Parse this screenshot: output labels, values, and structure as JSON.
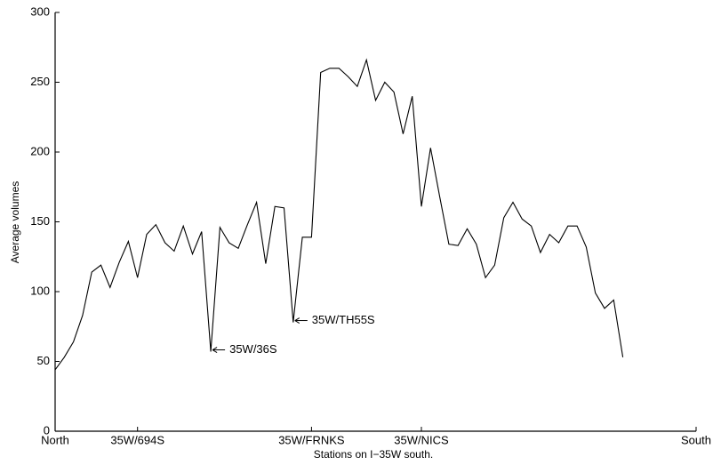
{
  "chart_data": {
    "type": "line",
    "xlabel": "Stations on I−35W south.",
    "ylabel": "Average volumes",
    "x": [
      0,
      1,
      2,
      3,
      4,
      5,
      6,
      7,
      8,
      9,
      10,
      11,
      12,
      13,
      14,
      15,
      16,
      17,
      18,
      19,
      20,
      21,
      22,
      23,
      24,
      25,
      26,
      27,
      28,
      29,
      30,
      31,
      32,
      33,
      34,
      35,
      36,
      37,
      38,
      39,
      40,
      41,
      42,
      43,
      44,
      45,
      46,
      47,
      48,
      49,
      50,
      51,
      52,
      53,
      54,
      55,
      56,
      57,
      58,
      59,
      60,
      61,
      62
    ],
    "series": [
      {
        "color": "#000000",
        "values": [
          44,
          53,
          64,
          83,
          114,
          119,
          103,
          121,
          136,
          110,
          141,
          148,
          135,
          129,
          147,
          127,
          143,
          57,
          146,
          135,
          131,
          148,
          164,
          120,
          161,
          160,
          78,
          139,
          139,
          257,
          260,
          260,
          254,
          247,
          266,
          237,
          250,
          243,
          213,
          240,
          161,
          203,
          168,
          134,
          133,
          145,
          134,
          110,
          119,
          153,
          164,
          152,
          147,
          128,
          141,
          135,
          147,
          147,
          132,
          99,
          88,
          94,
          53
        ]
      }
    ],
    "xlim": [
      0,
      70
    ],
    "xticks": [
      {
        "value": 0,
        "label": "North"
      },
      {
        "value": 9,
        "label": "35W/694S"
      },
      {
        "value": 28,
        "label": "35W/FRNKS"
      },
      {
        "value": 40,
        "label": "35W/NICS"
      },
      {
        "value": 70,
        "label": "South"
      }
    ],
    "ylim": [
      0,
      300
    ],
    "yticks": [
      0,
      50,
      100,
      150,
      200,
      250,
      300
    ],
    "annotations": [
      {
        "text": "35W/36S",
        "x": 17,
        "y": 57
      },
      {
        "text": "35W/TH55S",
        "x": 26,
        "y": 78
      }
    ]
  }
}
